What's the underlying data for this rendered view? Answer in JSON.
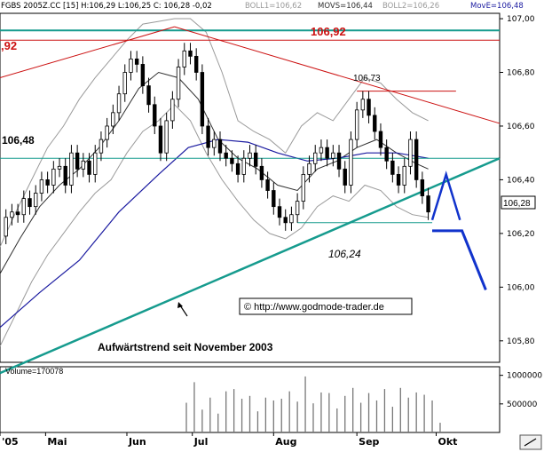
{
  "header": {
    "symbol": "FGBS 2005Z.CC [15] H:106,29 L:106,25 C: 106,28 -0,02",
    "boll1": "BOLL1=106,62",
    "movs": "MOVS=106,44",
    "boll2": "BOLL2=106,26",
    "move": "MovE=106,48"
  },
  "colors": {
    "price": "#000000",
    "bollinger": "#9a9a9a",
    "mov_short": "#303030",
    "mov_exp": "#1a1aa0",
    "trend": "#169b8e",
    "resistance": "#cc1111",
    "forecast": "#1133cc",
    "volume": "#777777",
    "frame": "#000000",
    "grid": "#d9d9d9"
  },
  "labels": {
    "level_106_92_left": ",92",
    "level_106_92": "106,92",
    "level_106_73": "106,73",
    "level_106_48": "106,48",
    "level_106_24": "106,24",
    "uptrend": "Aufwärtstrend seit November 2003",
    "website": "© http://www.godmode-trader.de",
    "volume_label": "Volume=170078"
  },
  "chart_data": [
    {
      "type": "candlestick",
      "y_ticks": [
        "107,00",
        "106,80",
        "106,60",
        "106,40",
        "106,20",
        "106,00",
        "105,80"
      ],
      "ylim": [
        105.72,
        107.02
      ],
      "x_ticks": [
        "'05",
        "Mai",
        "Jun",
        "Jul",
        "Aug",
        "Sep",
        "Okt"
      ],
      "x_tick_positions": [
        0,
        23,
        64,
        97,
        138,
        180,
        220
      ],
      "xlim": [
        0,
        252
      ],
      "last_price": "106,28",
      "horizontal_levels": [
        {
          "value": 106.92,
          "label": "106,92"
        },
        {
          "value": 106.73,
          "label": "106,73"
        },
        {
          "value": 106.48,
          "label": "106,48"
        },
        {
          "value": 106.24,
          "label": "106,24"
        }
      ],
      "uptrend_line": {
        "from": [
          0,
          105.68
        ],
        "to": [
          252,
          106.48
        ]
      },
      "resistance_line": {
        "from": [
          0,
          106.78
        ],
        "to": [
          88,
          106.97
        ],
        "continues_to": [
          252,
          106.61
        ]
      },
      "forecast": {
        "path": [
          [
            218,
            106.25
          ],
          [
            225,
            106.42
          ],
          [
            232,
            106.25
          ]
        ],
        "down": [
          [
            218,
            106.21
          ],
          [
            233,
            106.21
          ],
          [
            245,
            105.99
          ]
        ]
      },
      "price_path": [
        [
          0,
          106.19
        ],
        [
          3,
          106.26
        ],
        [
          6,
          106.28
        ],
        [
          9,
          106.27
        ],
        [
          12,
          106.33
        ],
        [
          15,
          106.3
        ],
        [
          18,
          106.35
        ],
        [
          21,
          106.4
        ],
        [
          24,
          106.38
        ],
        [
          27,
          106.44
        ],
        [
          30,
          106.45
        ],
        [
          33,
          106.38
        ],
        [
          36,
          106.5
        ],
        [
          39,
          106.44
        ],
        [
          42,
          106.47
        ],
        [
          45,
          106.42
        ],
        [
          48,
          106.5
        ],
        [
          51,
          106.55
        ],
        [
          54,
          106.6
        ],
        [
          57,
          106.65
        ],
        [
          60,
          106.72
        ],
        [
          63,
          106.8
        ],
        [
          66,
          106.85
        ],
        [
          69,
          106.83
        ],
        [
          72,
          106.75
        ],
        [
          75,
          106.68
        ],
        [
          78,
          106.6
        ],
        [
          81,
          106.5
        ],
        [
          84,
          106.62
        ],
        [
          87,
          106.7
        ],
        [
          90,
          106.82
        ],
        [
          93,
          106.88
        ],
        [
          96,
          106.86
        ],
        [
          99,
          106.8
        ],
        [
          102,
          106.6
        ],
        [
          105,
          106.52
        ],
        [
          108,
          106.55
        ],
        [
          111,
          106.5
        ],
        [
          114,
          106.48
        ],
        [
          117,
          106.46
        ],
        [
          120,
          106.42
        ],
        [
          123,
          106.48
        ],
        [
          126,
          106.5
        ],
        [
          129,
          106.45
        ],
        [
          132,
          106.4
        ],
        [
          135,
          106.36
        ],
        [
          138,
          106.3
        ],
        [
          141,
          106.26
        ],
        [
          144,
          106.24
        ],
        [
          147,
          106.27
        ],
        [
          150,
          106.32
        ],
        [
          153,
          106.42
        ],
        [
          156,
          106.46
        ],
        [
          159,
          106.5
        ],
        [
          162,
          106.52
        ],
        [
          165,
          106.48
        ],
        [
          168,
          106.5
        ],
        [
          171,
          106.44
        ],
        [
          174,
          106.38
        ],
        [
          177,
          106.55
        ],
        [
          180,
          106.66
        ],
        [
          183,
          106.7
        ],
        [
          186,
          106.64
        ],
        [
          189,
          106.58
        ],
        [
          192,
          106.52
        ],
        [
          195,
          106.47
        ],
        [
          198,
          106.42
        ],
        [
          201,
          106.38
        ],
        [
          204,
          106.45
        ],
        [
          207,
          106.55
        ],
        [
          210,
          106.4
        ],
        [
          213,
          106.34
        ],
        [
          216,
          106.28
        ]
      ],
      "bollinger_upper": [
        [
          0,
          106.15
        ],
        [
          8,
          106.28
        ],
        [
          16,
          106.4
        ],
        [
          24,
          106.52
        ],
        [
          32,
          106.6
        ],
        [
          40,
          106.7
        ],
        [
          48,
          106.78
        ],
        [
          56,
          106.85
        ],
        [
          64,
          106.92
        ],
        [
          72,
          106.98
        ],
        [
          80,
          106.99
        ],
        [
          88,
          107.0
        ],
        [
          96,
          107.0
        ],
        [
          104,
          106.95
        ],
        [
          112,
          106.8
        ],
        [
          120,
          106.62
        ],
        [
          128,
          106.58
        ],
        [
          136,
          106.55
        ],
        [
          144,
          106.5
        ],
        [
          152,
          106.6
        ],
        [
          160,
          106.65
        ],
        [
          168,
          106.62
        ],
        [
          176,
          106.7
        ],
        [
          184,
          106.78
        ],
        [
          192,
          106.76
        ],
        [
          200,
          106.7
        ],
        [
          208,
          106.65
        ],
        [
          216,
          106.62
        ]
      ],
      "bollinger_lower": [
        [
          0,
          105.78
        ],
        [
          8,
          105.9
        ],
        [
          16,
          106.02
        ],
        [
          24,
          106.12
        ],
        [
          32,
          106.2
        ],
        [
          40,
          106.28
        ],
        [
          48,
          106.35
        ],
        [
          56,
          106.4
        ],
        [
          64,
          106.5
        ],
        [
          72,
          106.58
        ],
        [
          80,
          106.62
        ],
        [
          88,
          106.68
        ],
        [
          96,
          106.62
        ],
        [
          104,
          106.5
        ],
        [
          112,
          106.4
        ],
        [
          120,
          106.32
        ],
        [
          128,
          106.25
        ],
        [
          136,
          106.2
        ],
        [
          144,
          106.18
        ],
        [
          152,
          106.22
        ],
        [
          160,
          106.3
        ],
        [
          168,
          106.34
        ],
        [
          176,
          106.32
        ],
        [
          184,
          106.38
        ],
        [
          192,
          106.36
        ],
        [
          200,
          106.3
        ],
        [
          208,
          106.27
        ],
        [
          216,
          106.26
        ]
      ],
      "mov_short": [
        [
          0,
          106.05
        ],
        [
          10,
          106.18
        ],
        [
          20,
          106.3
        ],
        [
          30,
          106.38
        ],
        [
          40,
          106.44
        ],
        [
          50,
          106.52
        ],
        [
          60,
          106.62
        ],
        [
          70,
          106.74
        ],
        [
          80,
          106.8
        ],
        [
          90,
          106.78
        ],
        [
          100,
          106.7
        ],
        [
          110,
          106.55
        ],
        [
          120,
          106.48
        ],
        [
          130,
          106.44
        ],
        [
          140,
          106.38
        ],
        [
          150,
          106.36
        ],
        [
          160,
          106.44
        ],
        [
          170,
          106.47
        ],
        [
          180,
          106.52
        ],
        [
          190,
          106.55
        ],
        [
          200,
          106.5
        ],
        [
          210,
          106.46
        ],
        [
          216,
          106.44
        ]
      ],
      "mov_exp": [
        [
          0,
          105.85
        ],
        [
          20,
          105.98
        ],
        [
          40,
          106.1
        ],
        [
          60,
          106.28
        ],
        [
          80,
          106.42
        ],
        [
          95,
          106.52
        ],
        [
          110,
          106.55
        ],
        [
          125,
          106.54
        ],
        [
          140,
          106.5
        ],
        [
          155,
          106.47
        ],
        [
          170,
          106.48
        ],
        [
          185,
          106.5
        ],
        [
          200,
          106.5
        ],
        [
          216,
          106.48
        ]
      ]
    },
    {
      "type": "bar",
      "title": "Volume",
      "y_ticks": [
        "1000000",
        "500000"
      ],
      "ylim": [
        0,
        1150000
      ],
      "x": [
        94,
        98,
        102,
        106,
        110,
        114,
        118,
        122,
        126,
        130,
        134,
        138,
        142,
        146,
        150,
        154,
        158,
        162,
        166,
        170,
        174,
        178,
        182,
        186,
        190,
        194,
        198,
        202,
        206,
        210,
        214,
        218,
        222
      ],
      "values": [
        520000,
        880000,
        400000,
        610000,
        330000,
        720000,
        760000,
        590000,
        640000,
        370000,
        610000,
        560000,
        590000,
        720000,
        540000,
        980000,
        510000,
        700000,
        690000,
        420000,
        640000,
        780000,
        520000,
        690000,
        560000,
        760000,
        450000,
        780000,
        610000,
        700000,
        660000,
        560000,
        170000
      ]
    }
  ]
}
